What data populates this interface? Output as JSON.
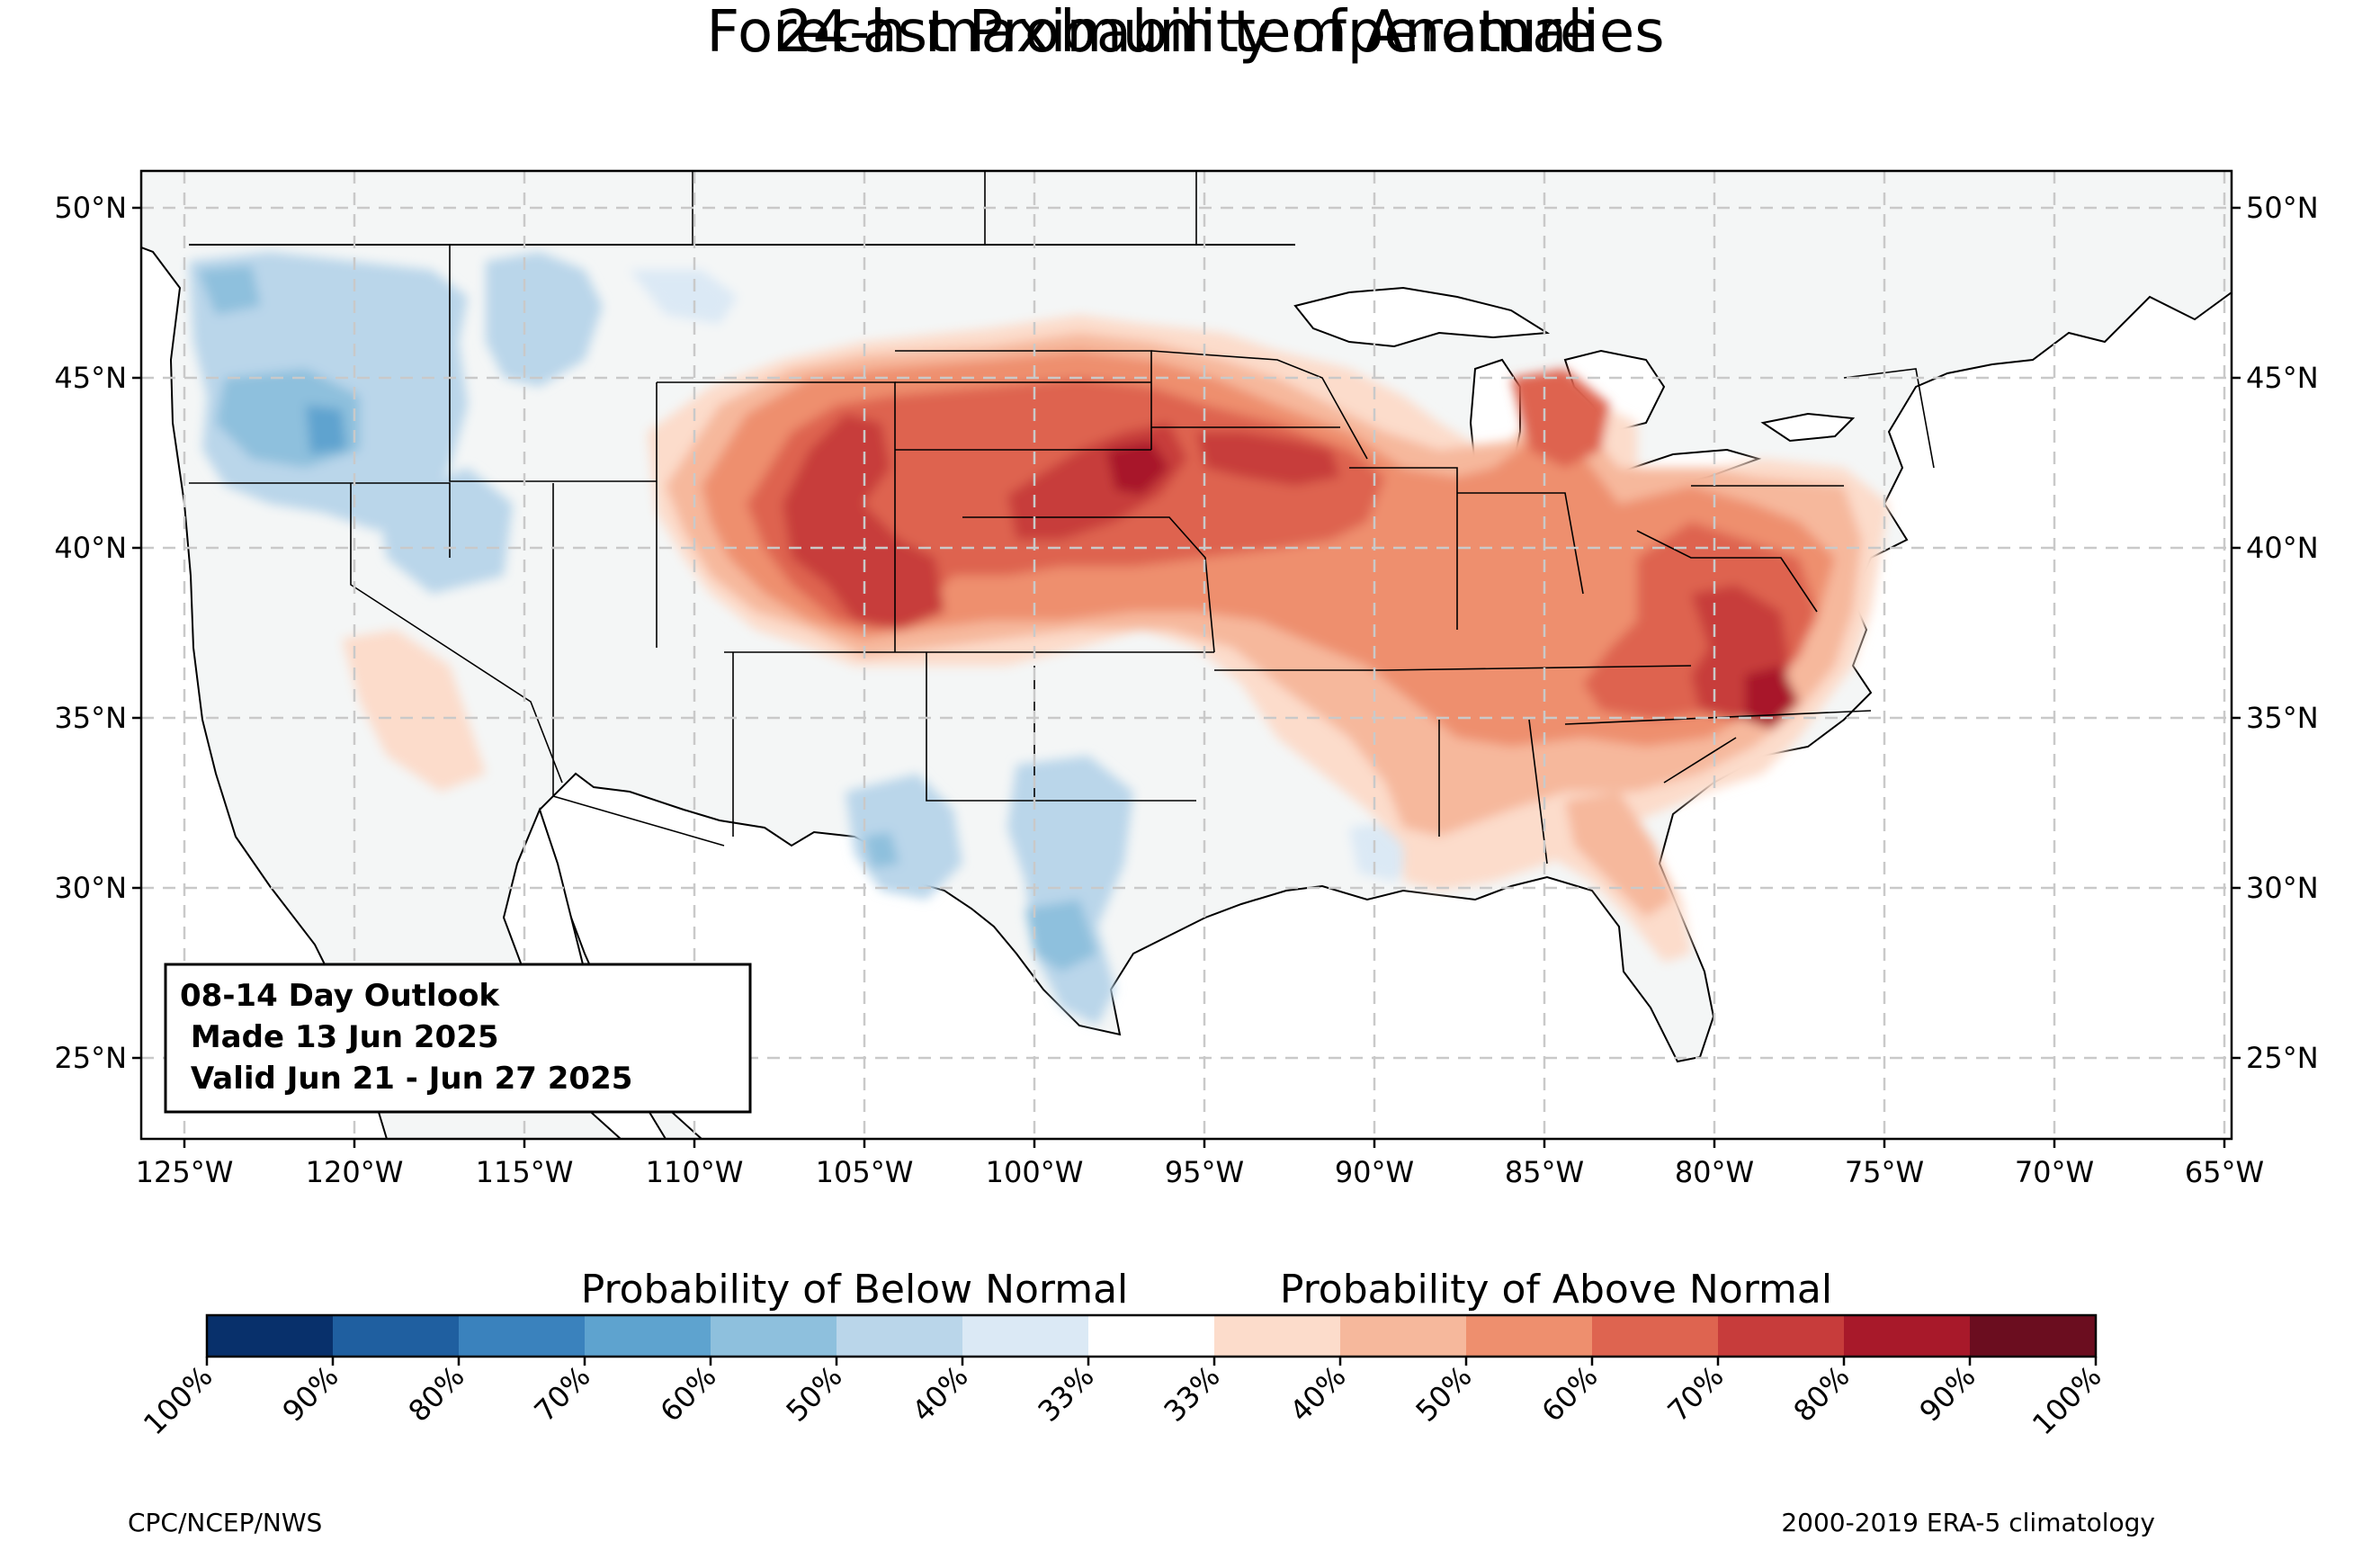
{
  "title": "Forecast Probability of Anomalies",
  "subtitle": "24-h maximum temperature",
  "outlook": {
    "line1": "08-14 Day Outlook",
    "line2": " Made 13 Jun 2025",
    "line3": " Valid Jun 21 - Jun 27 2025"
  },
  "lat_labels": [
    "50°N",
    "45°N",
    "40°N",
    "35°N",
    "30°N",
    "25°N"
  ],
  "lon_labels": [
    "125°W",
    "120°W",
    "115°W",
    "110°W",
    "105°W",
    "100°W",
    "95°W",
    "90°W",
    "85°W",
    "80°W",
    "75°W",
    "70°W",
    "65°W"
  ],
  "legend": {
    "below_label": "Probability of Below Normal",
    "above_label": "Probability of Above Normal",
    "ticks": [
      "100%",
      "90%",
      "80%",
      "70%",
      "60%",
      "50%",
      "40%",
      "33%",
      "33%",
      "40%",
      "50%",
      "60%",
      "70%",
      "80%",
      "90%",
      "100%"
    ],
    "colors": [
      "#08306b",
      "#1f5fa0",
      "#3a82bd",
      "#5ea3cf",
      "#8ec0dd",
      "#bad6ea",
      "#dbe9f5",
      "#ffffff",
      "#fcdccb",
      "#f6b89c",
      "#ee8f6e",
      "#de6450",
      "#c73c3b",
      "#a8192a",
      "#6b0d1f"
    ]
  },
  "footer_left": "CPC/NCEP/NWS",
  "footer_right": "2000-2019 ERA-5 climatology",
  "colors": {
    "land": "#f4f6f6",
    "grid": "#c9c9c9"
  }
}
